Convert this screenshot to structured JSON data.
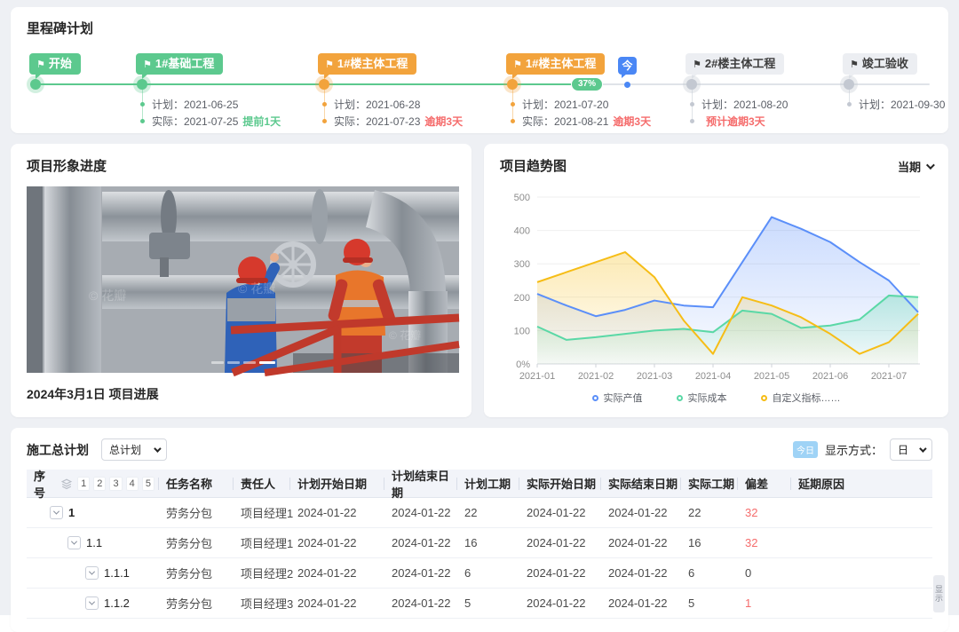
{
  "milestone": {
    "title": "里程碑计划",
    "progress": "37%",
    "today_label": "今",
    "items": [
      {
        "label": "开始",
        "status": "done",
        "lines": []
      },
      {
        "label": "1#基础工程",
        "status": "done",
        "lines": [
          {
            "prefix": "计划：",
            "value": "2021-06-25",
            "tag": "",
            "tag_type": ""
          },
          {
            "prefix": "实际：",
            "value": "2021-07-25",
            "tag": "提前1天",
            "tag_type": "early"
          }
        ]
      },
      {
        "label": "1#楼主体工程",
        "status": "late",
        "lines": [
          {
            "prefix": "计划：",
            "value": "2021-06-28",
            "tag": "",
            "tag_type": ""
          },
          {
            "prefix": "实际：",
            "value": "2021-07-23",
            "tag": "逾期3天",
            "tag_type": "late"
          }
        ]
      },
      {
        "label": "1#楼主体工程",
        "status": "late",
        "lines": [
          {
            "prefix": "计划：",
            "value": "2021-07-20",
            "tag": "",
            "tag_type": ""
          },
          {
            "prefix": "实际：",
            "value": "2021-08-21",
            "tag": "逾期3天",
            "tag_type": "late"
          }
        ]
      },
      {
        "label": "2#楼主体工程",
        "status": "pending",
        "lines": [
          {
            "prefix": "计划：",
            "value": "2021-08-20",
            "tag": "",
            "tag_type": ""
          },
          {
            "prefix": "",
            "value": "",
            "tag": "预计逾期3天",
            "tag_type": "late"
          }
        ]
      },
      {
        "label": "竣工验收",
        "status": "pending",
        "lines": [
          {
            "prefix": "计划：",
            "value": "2021-09-30",
            "tag": "",
            "tag_type": ""
          }
        ]
      }
    ]
  },
  "progress_card": {
    "title": "项目形象进度",
    "caption": "2024年3月1日 项目进展",
    "watermark": "花瓣",
    "carousel": {
      "total": 4,
      "active_index": 3
    }
  },
  "trend_card": {
    "title": "项目趋势图",
    "period": "当期"
  },
  "chart_data": {
    "type": "area",
    "title": "项目趋势图",
    "x_start": "2021-01",
    "points_per_month": 2,
    "x_ticks": [
      "2021-01",
      "2021-02",
      "2021-03",
      "2021-04",
      "2021-05",
      "2021-06",
      "2021-07"
    ],
    "y_ticks": [
      "0%",
      "100",
      "200",
      "300",
      "400",
      "500"
    ],
    "ylim": [
      0,
      500
    ],
    "grid": true,
    "legend_position": "bottom",
    "series": [
      {
        "name": "实际产值",
        "color": "#5b8ff9",
        "values": [
          210,
          175,
          143,
          162,
          190,
          175,
          170,
          305,
          440,
          405,
          365,
          305,
          250,
          155
        ]
      },
      {
        "name": "实际成本",
        "color": "#5ad8a6",
        "values": [
          112,
          72,
          80,
          90,
          100,
          105,
          95,
          160,
          150,
          108,
          115,
          133,
          205,
          200
        ]
      },
      {
        "name": "自定义指标……",
        "color": "#f6bd16",
        "values": [
          245,
          275,
          305,
          335,
          260,
          130,
          30,
          200,
          175,
          140,
          90,
          30,
          65,
          150
        ]
      }
    ]
  },
  "table_card": {
    "title": "施工总计划",
    "plan_selector": "总计划",
    "today_badge": "今日",
    "display_mode_label": "显示方式：",
    "display_mode_value": "日",
    "level_buttons": [
      "1",
      "2",
      "3",
      "4",
      "5"
    ],
    "side_handle": "显示",
    "columns": [
      "序号",
      "任务名称",
      "责任人",
      "计划开始日期",
      "计划结束日期",
      "计划工期",
      "实际开始日期",
      "实际结束日期",
      "实际工期",
      "偏差",
      "延期原因"
    ],
    "rows": [
      {
        "seq": "1",
        "level": 1,
        "task": "劳务分包",
        "owner": "项目经理1",
        "plan_start": "2024-01-22",
        "plan_end": "2024-01-22",
        "plan_days": "22",
        "act_start": "2024-01-22",
        "act_end": "2024-01-22",
        "act_days": "22",
        "deviation": "32",
        "deviation_red": true,
        "reason": ""
      },
      {
        "seq": "1.1",
        "level": 2,
        "task": "劳务分包",
        "owner": "项目经理1",
        "plan_start": "2024-01-22",
        "plan_end": "2024-01-22",
        "plan_days": "16",
        "act_start": "2024-01-22",
        "act_end": "2024-01-22",
        "act_days": "16",
        "deviation": "32",
        "deviation_red": true,
        "reason": ""
      },
      {
        "seq": "1.1.1",
        "level": 3,
        "task": "劳务分包",
        "owner": "项目经理2",
        "plan_start": "2024-01-22",
        "plan_end": "2024-01-22",
        "plan_days": "6",
        "act_start": "2024-01-22",
        "act_end": "2024-01-22",
        "act_days": "6",
        "deviation": "0",
        "deviation_red": false,
        "reason": ""
      },
      {
        "seq": "1.1.2",
        "level": 3,
        "task": "劳务分包",
        "owner": "项目经理3",
        "plan_start": "2024-01-22",
        "plan_end": "2024-01-22",
        "plan_days": "5",
        "act_start": "2024-01-22",
        "act_end": "2024-01-22",
        "act_days": "5",
        "deviation": "1",
        "deviation_red": true,
        "reason": ""
      }
    ]
  }
}
